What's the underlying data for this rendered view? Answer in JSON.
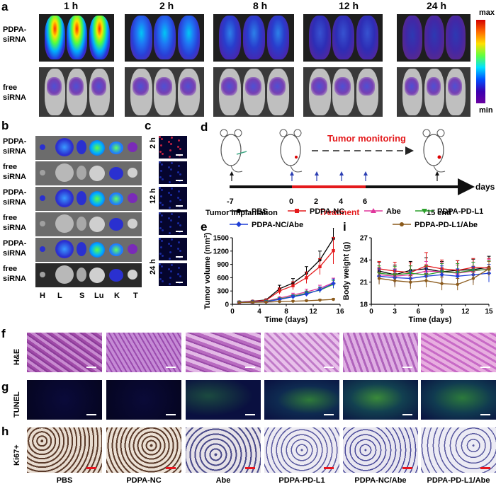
{
  "panels": {
    "a": "a",
    "b": "b",
    "c": "c",
    "d": "d",
    "e": "e",
    "i": "i",
    "f": "f",
    "g": "g",
    "h": "h"
  },
  "panel_a": {
    "timepoints": [
      "1 h",
      "2 h",
      "8 h",
      "12 h",
      "24 h"
    ],
    "row_labels": [
      "PDPA-\nsiRNA",
      "free\nsiRNA"
    ],
    "row1_label": "PDPA-",
    "row1_label2": "siRNA",
    "row2_label": "free",
    "row2_label2": "siRNA",
    "colorbar_max": "max",
    "colorbar_min": "min"
  },
  "panel_b": {
    "rows": [
      {
        "l1": "PDPA-",
        "l2": "siRNA"
      },
      {
        "l1": "free",
        "l2": "siRNA"
      },
      {
        "l1": "PDPA-",
        "l2": "siRNA"
      },
      {
        "l1": "free",
        "l2": "siRNA"
      },
      {
        "l1": "PDPA-",
        "l2": "siRNA"
      },
      {
        "l1": "free",
        "l2": "siRNA"
      }
    ],
    "organs": [
      "H",
      "L",
      "S",
      "Lu",
      "K",
      "T"
    ]
  },
  "panel_c": {
    "timepoints": [
      "2 h",
      "12 h",
      "24 h"
    ]
  },
  "panel_d": {
    "monitoring": "Tumor monitoring",
    "treatment": "Treatment",
    "days_label": "days",
    "ticks": [
      "-7",
      "0",
      "2",
      "4",
      "6",
      "15 end"
    ],
    "implantation": "Tumor implantation"
  },
  "legend": {
    "items": [
      {
        "name": "PBS",
        "color": "#000000",
        "marker": "circle"
      },
      {
        "name": "PDPA-NC",
        "color": "#e41a1c",
        "marker": "square"
      },
      {
        "name": "Abe",
        "color": "#e0359b",
        "marker": "triangle"
      },
      {
        "name": "PDPA-PD-L1",
        "color": "#2ca02c",
        "marker": "triangle-down"
      },
      {
        "name": "PDPA-NC/Abe",
        "color": "#1f3fd6",
        "marker": "diamond"
      },
      {
        "name": "PDPA-PD-L1/Abe",
        "color": "#8b5a1b",
        "marker": "circle"
      }
    ]
  },
  "chart_data": [
    {
      "type": "line",
      "panel": "e",
      "xlabel": "Time (days)",
      "ylabel": "Tumor volume (mm³)",
      "xlim": [
        0,
        16
      ],
      "ylim": [
        0,
        1500
      ],
      "xticks": [
        0,
        4,
        8,
        12,
        16
      ],
      "yticks": [
        0,
        300,
        600,
        900,
        1200,
        1500
      ],
      "x": [
        1,
        3,
        5,
        7,
        9,
        11,
        13,
        15
      ],
      "series": [
        {
          "name": "PBS",
          "color": "#000000",
          "values": [
            50,
            70,
            100,
            350,
            480,
            700,
            1000,
            1480
          ],
          "err": [
            10,
            15,
            20,
            80,
            100,
            150,
            200,
            250
          ]
        },
        {
          "name": "PDPA-NC",
          "color": "#e41a1c",
          "values": [
            50,
            65,
            90,
            300,
            420,
            600,
            850,
            1210
          ],
          "err": [
            10,
            12,
            20,
            70,
            90,
            130,
            180,
            300
          ]
        },
        {
          "name": "Abe",
          "color": "#e0359b",
          "values": [
            45,
            55,
            70,
            140,
            210,
            280,
            360,
            490
          ],
          "err": [
            8,
            10,
            12,
            30,
            40,
            60,
            70,
            100
          ]
        },
        {
          "name": "PDPA-PD-L1",
          "color": "#2ca02c",
          "values": [
            45,
            50,
            65,
            120,
            180,
            250,
            320,
            450
          ],
          "err": [
            8,
            10,
            12,
            25,
            35,
            50,
            60,
            90
          ]
        },
        {
          "name": "PDPA-NC/Abe",
          "color": "#1f3fd6",
          "values": [
            45,
            50,
            60,
            110,
            170,
            230,
            330,
            470
          ],
          "err": [
            8,
            10,
            12,
            25,
            35,
            50,
            60,
            100
          ]
        },
        {
          "name": "PDPA-PD-L1/Abe",
          "color": "#8b5a1b",
          "values": [
            40,
            45,
            50,
            60,
            70,
            80,
            95,
            110
          ],
          "err": [
            5,
            6,
            8,
            10,
            12,
            15,
            15,
            20
          ]
        }
      ]
    },
    {
      "type": "line",
      "panel": "i",
      "xlabel": "Time (days)",
      "ylabel": "Body weight (g)",
      "xlim": [
        0,
        15
      ],
      "ylim": [
        18,
        27
      ],
      "xticks": [
        0,
        3,
        6,
        9,
        12,
        15
      ],
      "yticks": [
        18,
        21,
        24,
        27
      ],
      "x": [
        1,
        3,
        5,
        7,
        9,
        11,
        13,
        15
      ],
      "series": [
        {
          "name": "PBS",
          "color": "#000000",
          "values": [
            22.5,
            22.0,
            22.6,
            22.8,
            22.4,
            22.6,
            22.7,
            23.0
          ],
          "err": [
            1.2,
            1.3,
            1.2,
            1.5,
            1.4,
            1.3,
            1.4,
            1.5
          ]
        },
        {
          "name": "PDPA-NC",
          "color": "#e41a1c",
          "values": [
            22.8,
            22.5,
            22.3,
            23.2,
            22.8,
            22.6,
            23.0,
            22.9
          ],
          "err": [
            1.0,
            1.2,
            1.3,
            1.8,
            1.2,
            1.3,
            1.2,
            1.3
          ]
        },
        {
          "name": "Abe",
          "color": "#e0359b",
          "values": [
            22.0,
            21.8,
            22.0,
            22.5,
            22.4,
            22.2,
            22.5,
            22.8
          ],
          "err": [
            1.0,
            1.0,
            1.2,
            1.3,
            1.2,
            1.1,
            1.2,
            1.3
          ]
        },
        {
          "name": "PDPA-PD-L1",
          "color": "#2ca02c",
          "values": [
            22.2,
            22.0,
            22.2,
            22.0,
            22.4,
            22.3,
            22.6,
            22.7
          ],
          "err": [
            1.0,
            1.1,
            1.0,
            1.2,
            1.1,
            1.2,
            1.1,
            1.2
          ]
        },
        {
          "name": "PDPA-NC/Abe",
          "color": "#1f3fd6",
          "values": [
            21.8,
            21.6,
            21.5,
            21.8,
            22.0,
            21.8,
            22.0,
            22.2
          ],
          "err": [
            1.0,
            1.1,
            1.0,
            1.1,
            1.2,
            1.0,
            1.1,
            1.2
          ]
        },
        {
          "name": "PDPA-PD-L1/Abe",
          "color": "#8b5a1b",
          "values": [
            21.5,
            21.2,
            21.0,
            21.2,
            20.8,
            20.7,
            21.5,
            22.8
          ],
          "err": [
            0.8,
            0.9,
            0.9,
            0.9,
            0.9,
            0.8,
            0.9,
            1.0
          ]
        }
      ]
    }
  ],
  "panel_fgh": {
    "row_labels": [
      "H&E",
      "TUNEL",
      "Ki67+"
    ],
    "groups": [
      "PBS",
      "PDPA-NC",
      "Abe",
      "PDPA-PD-L1",
      "PDPA-NC/Abe",
      "PDPA-PD-L1/Abe"
    ]
  }
}
